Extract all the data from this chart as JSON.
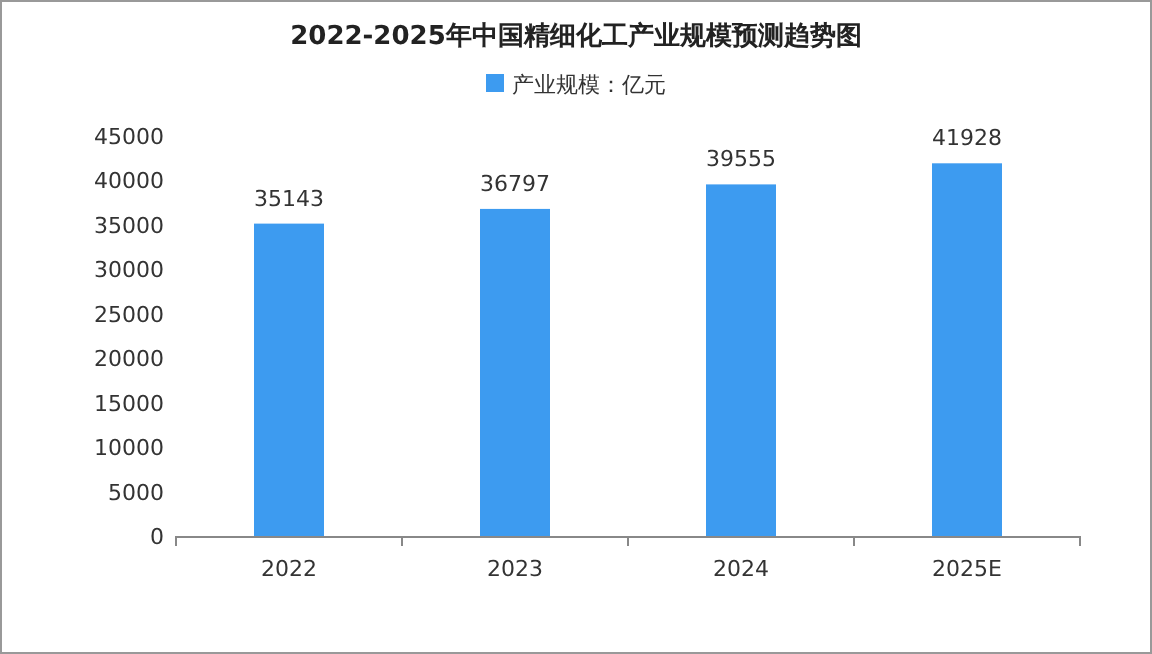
{
  "chart_data": {
    "type": "bar",
    "title": "2022-2025年中国精细化工产业规模预测趋势图",
    "categories": [
      "2022",
      "2023",
      "2024",
      "2025E"
    ],
    "series": [
      {
        "name": "产业规模：亿元",
        "color": "#3d9bf0",
        "values": [
          35143,
          36797,
          39555,
          41928
        ]
      }
    ],
    "ylim": [
      0,
      45000
    ],
    "yticks": [
      0,
      5000,
      10000,
      15000,
      20000,
      25000,
      30000,
      35000,
      40000,
      45000
    ],
    "data_labels": true,
    "legend": "top"
  }
}
